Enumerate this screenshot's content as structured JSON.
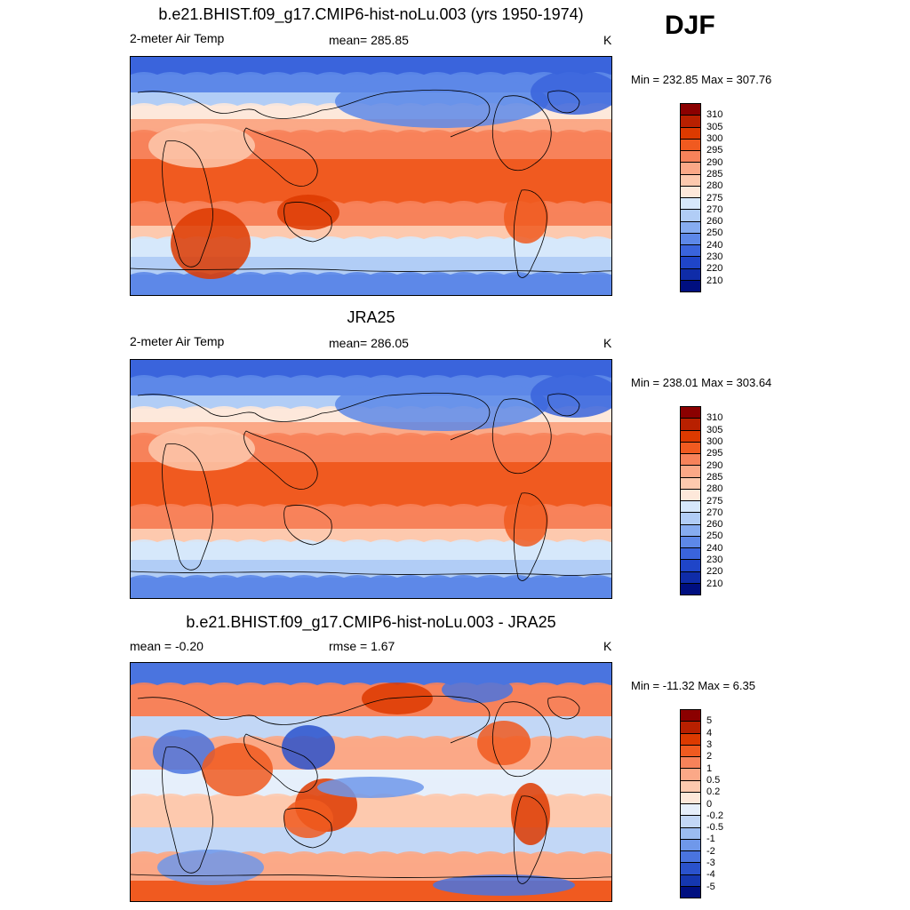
{
  "season": "DJF",
  "panels": [
    {
      "title": "b.e21.BHIST.f09_g17.CMIP6-hist-noLu.003 (yrs 1950-1974)",
      "left_label": "2-meter Air Temp",
      "center_label": "mean= 285.85",
      "units": "K",
      "minmax": "Min = 232.85 Max = 307.76",
      "kind": "abs"
    },
    {
      "title": "JRA25",
      "left_label": "2-meter Air Temp",
      "center_label": "mean= 286.05",
      "units": "K",
      "minmax": "Min = 238.01 Max = 303.64",
      "kind": "abs"
    },
    {
      "title": "b.e21.BHIST.f09_g17.CMIP6-hist-noLu.003 - JRA25",
      "left_label": "mean =  -0.20",
      "center_label": "rmse =   1.67",
      "units": "K",
      "minmax": "Min = -11.32 Max =   6.35",
      "kind": "diff"
    }
  ],
  "colorbar_abs": {
    "levels": [
      "310",
      "305",
      "300",
      "295",
      "290",
      "285",
      "280",
      "275",
      "270",
      "260",
      "250",
      "240",
      "230",
      "220",
      "210"
    ],
    "colors": [
      "#8b0000",
      "#b82000",
      "#dd3a00",
      "#f05a20",
      "#f7825a",
      "#fba887",
      "#fdc9ae",
      "#fde8da",
      "#d6e8fb",
      "#b1cdf6",
      "#86acf0",
      "#5d88e8",
      "#3a64dc",
      "#1f45c8",
      "#0f2ca8",
      "#000f80"
    ]
  },
  "colorbar_diff": {
    "levels": [
      "5",
      "4",
      "3",
      "2",
      "1",
      "0.5",
      "0.2",
      "0",
      "-0.2",
      "-0.5",
      "-1",
      "-2",
      "-3",
      "-4",
      "-5"
    ],
    "colors": [
      "#8b0000",
      "#b82000",
      "#dd3a00",
      "#f05a20",
      "#f7825a",
      "#fba887",
      "#fdc9ae",
      "#fde8da",
      "#e6effb",
      "#c2d7f6",
      "#9bbcf1",
      "#6f98ea",
      "#4a74df",
      "#2a52cc",
      "#1537b0",
      "#000f80"
    ]
  }
}
